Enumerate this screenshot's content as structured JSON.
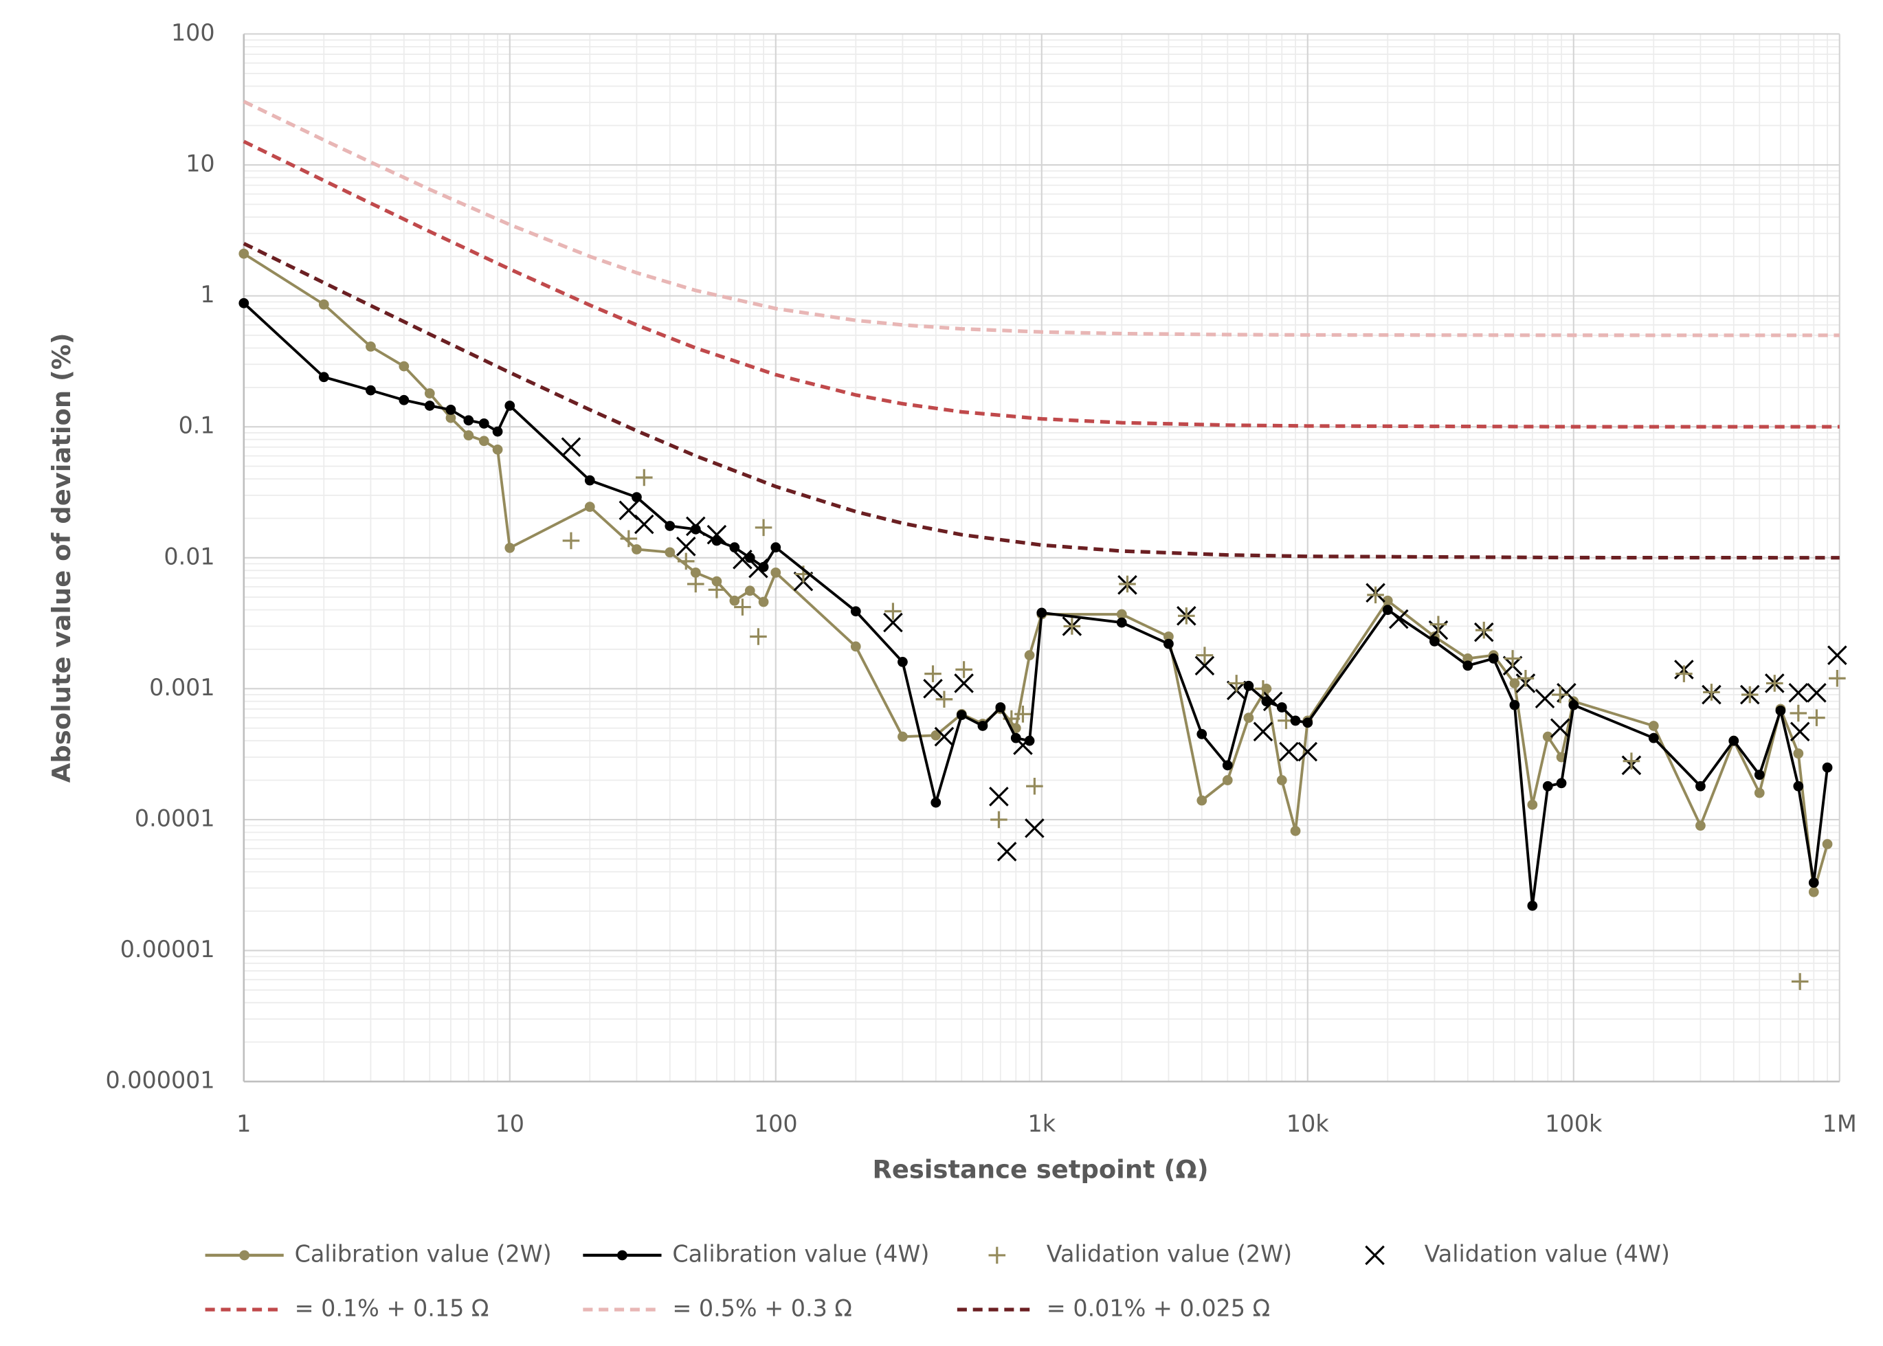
{
  "chart_data": {
    "type": "line",
    "log_x": true,
    "log_y": true,
    "grid": true,
    "x_label": "Resistance setpoint (Ω)",
    "y_label": "Absolute value of deviation (%)",
    "xlim": [
      1,
      1000000
    ],
    "xticks": [
      1,
      10,
      100,
      {
        "value": 1000,
        "label": "1k"
      },
      {
        "value": 10000,
        "label": "10k"
      },
      {
        "value": 100000,
        "label": "100k"
      },
      {
        "value": 1000000,
        "label": "1M"
      }
    ],
    "ylim": [
      1e-06,
      100
    ],
    "yticks": [
      {
        "value": 1e-06,
        "label": "0.000001"
      },
      {
        "value": 1e-05,
        "label": "0.00001"
      },
      0.0001,
      0.001,
      0.01,
      0.1,
      1,
      10,
      100
    ],
    "series": [
      {
        "name": "Calibration value (2W)",
        "color": "#948a5b",
        "style": "line-marker",
        "x": [
          1,
          2,
          3,
          4,
          5,
          6,
          7,
          8,
          9,
          10,
          20,
          30,
          40,
          50,
          60,
          70,
          80,
          90,
          100,
          200,
          300,
          400,
          500,
          600,
          700,
          800,
          900,
          1000,
          2000,
          3000,
          4000,
          5000,
          6000,
          7000,
          8000,
          9000,
          10000,
          20000,
          30000,
          40000,
          50000,
          60000,
          70000,
          80000,
          90000,
          100000,
          200000,
          300000,
          400000,
          500000,
          600000,
          700000,
          800000,
          900000
        ],
        "values": [
          2.1,
          0.86,
          0.41,
          0.29,
          0.18,
          0.117,
          0.086,
          0.078,
          0.067,
          0.0119,
          0.0245,
          0.0116,
          0.011,
          0.0077,
          0.0066,
          0.0047,
          0.0056,
          0.0046,
          0.0077,
          0.0021,
          0.00043,
          0.00044,
          0.00064,
          0.00054,
          0.0007,
          0.0005,
          0.0018,
          0.0037,
          0.0037,
          0.0025,
          0.00014,
          0.0002,
          0.0006,
          0.001,
          0.0002,
          8.2e-05,
          0.00057,
          0.0047,
          0.0025,
          0.0017,
          0.0018,
          0.0011,
          0.00013,
          0.00043,
          0.0003,
          0.0008,
          0.00052,
          9e-05,
          0.0004,
          0.00016,
          0.0007,
          0.00032,
          2.8e-05,
          6.5e-05
        ]
      },
      {
        "name": "Calibration value (4W)",
        "color": "#000000",
        "style": "line-marker",
        "x": [
          1,
          2,
          3,
          4,
          5,
          6,
          7,
          8,
          9,
          10,
          20,
          30,
          40,
          50,
          60,
          70,
          80,
          90,
          100,
          200,
          300,
          400,
          500,
          600,
          700,
          800,
          900,
          1000,
          2000,
          3000,
          4000,
          5000,
          6000,
          7000,
          8000,
          9000,
          10000,
          20000,
          30000,
          40000,
          50000,
          60000,
          70000,
          80000,
          90000,
          100000,
          200000,
          300000,
          400000,
          500000,
          600000,
          700000,
          800000,
          900000
        ],
        "values": [
          0.88,
          0.24,
          0.19,
          0.16,
          0.145,
          0.135,
          0.112,
          0.106,
          0.092,
          0.145,
          0.039,
          0.029,
          0.0175,
          0.0165,
          0.0135,
          0.012,
          0.01,
          0.0085,
          0.012,
          0.0039,
          0.0016,
          0.000135,
          0.00063,
          0.00052,
          0.00072,
          0.00042,
          0.0004,
          0.0038,
          0.0032,
          0.0022,
          0.00045,
          0.00026,
          0.00105,
          0.0008,
          0.00072,
          0.00057,
          0.00055,
          0.004,
          0.0023,
          0.0015,
          0.0017,
          0.00075,
          2.2e-05,
          0.00018,
          0.00019,
          0.00075,
          0.00042,
          0.00018,
          0.0004,
          0.00022,
          0.00068,
          0.00018,
          3.3e-05,
          0.00025
        ]
      },
      {
        "name": "Validation value (2W)",
        "color": "#948a5b",
        "style": "plus",
        "x": [
          17,
          28,
          32,
          46,
          50,
          60,
          75,
          86,
          90,
          127,
          276,
          390,
          430,
          510,
          690,
          770,
          850,
          940,
          1300,
          2100,
          3500,
          4100,
          5400,
          6800,
          8300,
          18000,
          31000,
          46000,
          59000,
          66000,
          89000,
          165000,
          260000,
          330000,
          460000,
          570000,
          700000,
          710000,
          820000,
          980000
        ],
        "values": [
          0.0135,
          0.014,
          0.041,
          0.0094,
          0.0063,
          0.0057,
          0.0042,
          0.0025,
          0.017,
          0.0075,
          0.0039,
          0.0013,
          0.00083,
          0.0014,
          0.0001,
          0.00059,
          0.00064,
          0.00018,
          0.003,
          0.0063,
          0.0036,
          0.0018,
          0.0011,
          0.001,
          0.00057,
          0.0052,
          0.0031,
          0.0028,
          0.0017,
          0.0012,
          0.0009,
          0.00028,
          0.0013,
          0.00094,
          0.0009,
          0.0011,
          0.00065,
          5.8e-06,
          0.0006,
          0.0012
        ]
      },
      {
        "name": "Validation value (4W)",
        "color": "#000000",
        "style": "cross",
        "x": [
          17,
          28,
          32,
          46,
          50,
          60,
          75,
          86,
          127,
          276,
          390,
          430,
          510,
          690,
          740,
          850,
          940,
          1300,
          2100,
          3500,
          4100,
          5400,
          6800,
          7400,
          8500,
          10000,
          18000,
          22000,
          31000,
          46000,
          59000,
          66000,
          78000,
          89000,
          94000,
          165000,
          260000,
          330000,
          460000,
          570000,
          700000,
          710000,
          820000,
          980000
        ],
        "values": [
          0.07,
          0.023,
          0.018,
          0.0122,
          0.0174,
          0.015,
          0.0097,
          0.0083,
          0.0066,
          0.0032,
          0.001,
          0.00043,
          0.0011,
          0.00015,
          5.7e-05,
          0.00037,
          8.6e-05,
          0.003,
          0.0062,
          0.0036,
          0.0015,
          0.00097,
          0.00047,
          0.0008,
          0.00033,
          0.00033,
          0.0054,
          0.0034,
          0.0028,
          0.0027,
          0.0015,
          0.0011,
          0.00084,
          0.0005,
          0.00093,
          0.00026,
          0.0014,
          0.0009,
          0.0009,
          0.0011,
          0.00093,
          0.00047,
          0.00093,
          0.0018
        ]
      },
      {
        "name": "= 0.1% + 0.15 Ω",
        "color": "#c0494b",
        "style": "dashed",
        "x": [
          1,
          2,
          3,
          5,
          10,
          20,
          30,
          50,
          100,
          200,
          300,
          500,
          1000,
          2000,
          5000,
          10000,
          100000,
          1000000
        ],
        "values": [
          15.1,
          7.6,
          5.1,
          3.1,
          1.6,
          0.85,
          0.6,
          0.4,
          0.25,
          0.175,
          0.15,
          0.13,
          0.115,
          0.1075,
          0.103,
          0.1015,
          0.10015,
          0.100015
        ]
      },
      {
        "name": "= 0.5% + 0.3 Ω",
        "color": "#e8b6b5",
        "style": "dashed",
        "x": [
          1,
          2,
          3,
          5,
          10,
          20,
          30,
          50,
          100,
          200,
          300,
          500,
          1000,
          2000,
          5000,
          10000,
          100000,
          1000000
        ],
        "values": [
          30.5,
          15.5,
          10.5,
          6.5,
          3.5,
          2,
          1.5,
          1.1,
          0.8,
          0.65,
          0.6,
          0.56,
          0.53,
          0.515,
          0.506,
          0.503,
          0.5003,
          0.50003
        ]
      },
      {
        "name": "= 0.01% + 0.025 Ω",
        "color": "#6b1f22",
        "style": "dashed",
        "x": [
          1,
          2,
          3,
          5,
          10,
          20,
          30,
          50,
          100,
          200,
          300,
          500,
          1000,
          2000,
          5000,
          10000,
          100000,
          1000000
        ],
        "values": [
          2.51,
          1.26,
          0.8433,
          0.51,
          0.26,
          0.135,
          0.0933,
          0.06,
          0.035,
          0.0225,
          0.01833,
          0.015,
          0.0125,
          0.01125,
          0.0105,
          0.01025,
          0.010025,
          0.0100025
        ]
      }
    ]
  }
}
